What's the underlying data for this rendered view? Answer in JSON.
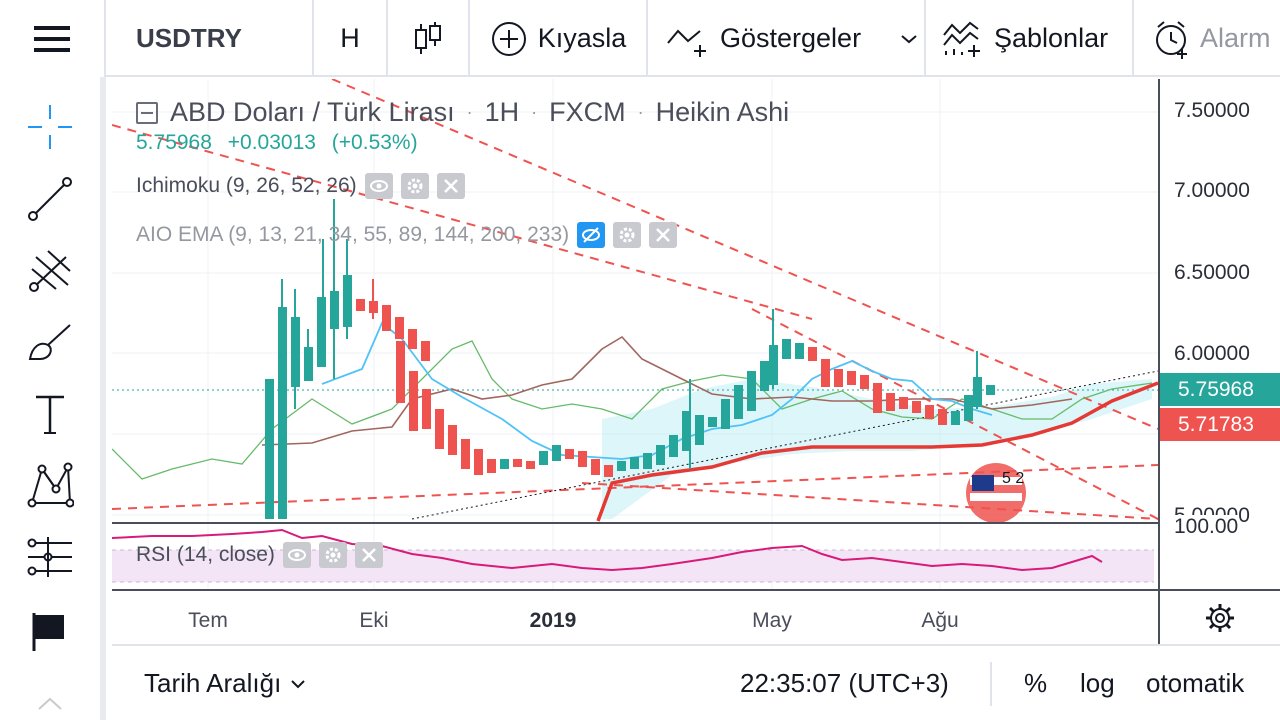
{
  "toolbar": {
    "symbol": "USDTRY",
    "interval": "H",
    "compare_label": "Kıyasla",
    "indicators_label": "Göstergeler",
    "templates_label": "Şablonlar",
    "alarm_label": "Alarm"
  },
  "legend": {
    "title_name": "ABD Doları / Türk Lirası",
    "title_interval": "1H",
    "title_exchange": "FXCM",
    "title_style": "Heikin Ashi",
    "separator": "·",
    "last_price": "5.75968",
    "change": "+0.03013",
    "change_pct": "(+0.53%)",
    "ichimoku": "Ichimoku (9, 26, 52, 26)",
    "aio_ema": "AIO EMA (9, 13, 21, 34, 55, 89, 144, 200, 233)",
    "rsi": "RSI (14, close)"
  },
  "price_axis": {
    "labels": [
      "7.50000",
      "7.00000",
      "6.50000",
      "6.00000",
      "5.00000"
    ],
    "rsi_label": "100.00",
    "current_tag": "5.75968",
    "secondary_tag": "5.71783",
    "current_color": "#26a69a",
    "secondary_color": "#ef5350"
  },
  "time_axis": {
    "labels": [
      "Tem",
      "Eki",
      "2019",
      "May",
      "Ağu"
    ]
  },
  "bottombar": {
    "range_label": "Tarih Aralığı",
    "clock": "22:35:07 (UTC+3)",
    "percent": "%",
    "log": "log",
    "auto": "otomatik"
  },
  "overlay": {
    "flag_badge": "5 2"
  },
  "colors": {
    "up": "#26a69a",
    "down": "#ef5350",
    "cloud": "#b2ebf2",
    "rsi_line": "#d81b7a",
    "rsi_band": "#f3e5f5"
  },
  "icons": [
    "menu-icon",
    "candle-icon",
    "plus-circle-icon",
    "indicators-icon",
    "templates-icon",
    "alarm-clock-icon",
    "crosshair-icon",
    "trendline-icon",
    "pitchfork-icon",
    "brush-icon",
    "text-icon",
    "pattern-icon",
    "measure-icon",
    "flag-icon",
    "gear-icon",
    "chevron-down-icon"
  ]
}
